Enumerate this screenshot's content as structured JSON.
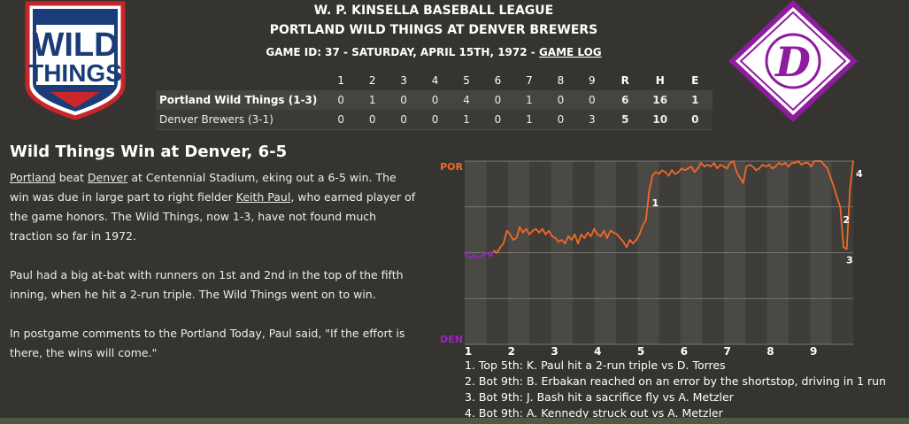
{
  "header": {
    "league": "W. P. KINSELLA BASEBALL LEAGUE",
    "matchup": "PORTLAND WILD THINGS AT DENVER BREWERS",
    "game_info_prefix": "GAME ID: 37 - SATURDAY, APRIL 15TH, 1972 - ",
    "game_log_link": "GAME LOG"
  },
  "logos": {
    "left": {
      "line1": "WILD",
      "line2": "THINGS",
      "icon": "wild-things-logo"
    },
    "right": {
      "letter": "D",
      "icon": "denver-brewers-logo"
    }
  },
  "linescore": {
    "columns": [
      "1",
      "2",
      "3",
      "4",
      "5",
      "6",
      "7",
      "8",
      "9",
      "R",
      "H",
      "E"
    ],
    "rows": [
      {
        "team": "Portland Wild Things (1-3)",
        "innings": [
          "0",
          "1",
          "0",
          "0",
          "4",
          "0",
          "1",
          "0",
          "0"
        ],
        "R": "6",
        "H": "16",
        "E": "1"
      },
      {
        "team": "Denver Brewers (3-1)",
        "innings": [
          "0",
          "0",
          "0",
          "0",
          "1",
          "0",
          "1",
          "0",
          "3"
        ],
        "R": "5",
        "H": "10",
        "E": "0"
      }
    ]
  },
  "story": {
    "headline": "Wild Things Win at Denver, 6-5",
    "p1": {
      "link1": "Portland",
      "t1": " beat ",
      "link2": "Denver",
      "t2": " at Centennial Stadium, eking out a 6-5 win. The win was due in large part to right fielder ",
      "link3": "Keith Paul",
      "t3": ", who earned player of the game honors. The Wild Things, now 1-3, have not found much traction so far in 1972."
    },
    "p2": "Paul had a big at-bat with runners on 1st and 2nd in the top of the fifth inning, when he hit a 2-run triple. The Wild Things went on to win.",
    "p3": "In postgame comments to the Portland Today, Paul said, \"If the effort is there, the wins will come.\""
  },
  "chart_data": {
    "type": "line",
    "y_top_label": "POR",
    "y_bottom_label": "DEN",
    "x_labels": [
      "1",
      "2",
      "3",
      "4",
      "5",
      "6",
      "7",
      "8",
      "9"
    ],
    "colors": {
      "away": "#f06a25",
      "home": "#a020c0"
    },
    "ylim": [
      0,
      100
    ],
    "grid": true,
    "series": [
      {
        "values": [
          50,
          48,
          47,
          49,
          47,
          48,
          49,
          50,
          48,
          51,
          50,
          53,
          55,
          62,
          60,
          57,
          58,
          64,
          61,
          63,
          60,
          62,
          63,
          61,
          63,
          60,
          62,
          59,
          58,
          56,
          57,
          55,
          59,
          57,
          60,
          55,
          60,
          58,
          61,
          59,
          63,
          60,
          59,
          62,
          58,
          62,
          61,
          60,
          58,
          56,
          53,
          57,
          55,
          57,
          60,
          65,
          68,
          84,
          92,
          94,
          93,
          95,
          94,
          92,
          95,
          93,
          94,
          96,
          95,
          96,
          97,
          94,
          96,
          99,
          97,
          98,
          97,
          99,
          96,
          98,
          97,
          96,
          99,
          100,
          94,
          91,
          88,
          97,
          98,
          97,
          95,
          96,
          98,
          97,
          98,
          96,
          97,
          99,
          98,
          99,
          97,
          99,
          99,
          100,
          98,
          99,
          99,
          97,
          100,
          100,
          100,
          98,
          96,
          91,
          86,
          80,
          75,
          53,
          52,
          85,
          100
        ]
      }
    ],
    "annotations": [
      {
        "label": "1",
        "x": 57
      },
      {
        "label": "2",
        "x": 116
      },
      {
        "label": "3",
        "x": 117
      },
      {
        "label": "4",
        "x": 120
      }
    ]
  },
  "notes": [
    "1. Top 5th: K. Paul hit a 2-run triple vs D. Torres",
    "2. Bot 9th: B. Erbakan reached on an error by the shortstop, driving in 1 run",
    "3. Bot 9th: J. Bash hit a sacrifice fly vs A. Metzler",
    "4. Bot 9th: A. Kennedy struck out vs A. Metzler"
  ]
}
